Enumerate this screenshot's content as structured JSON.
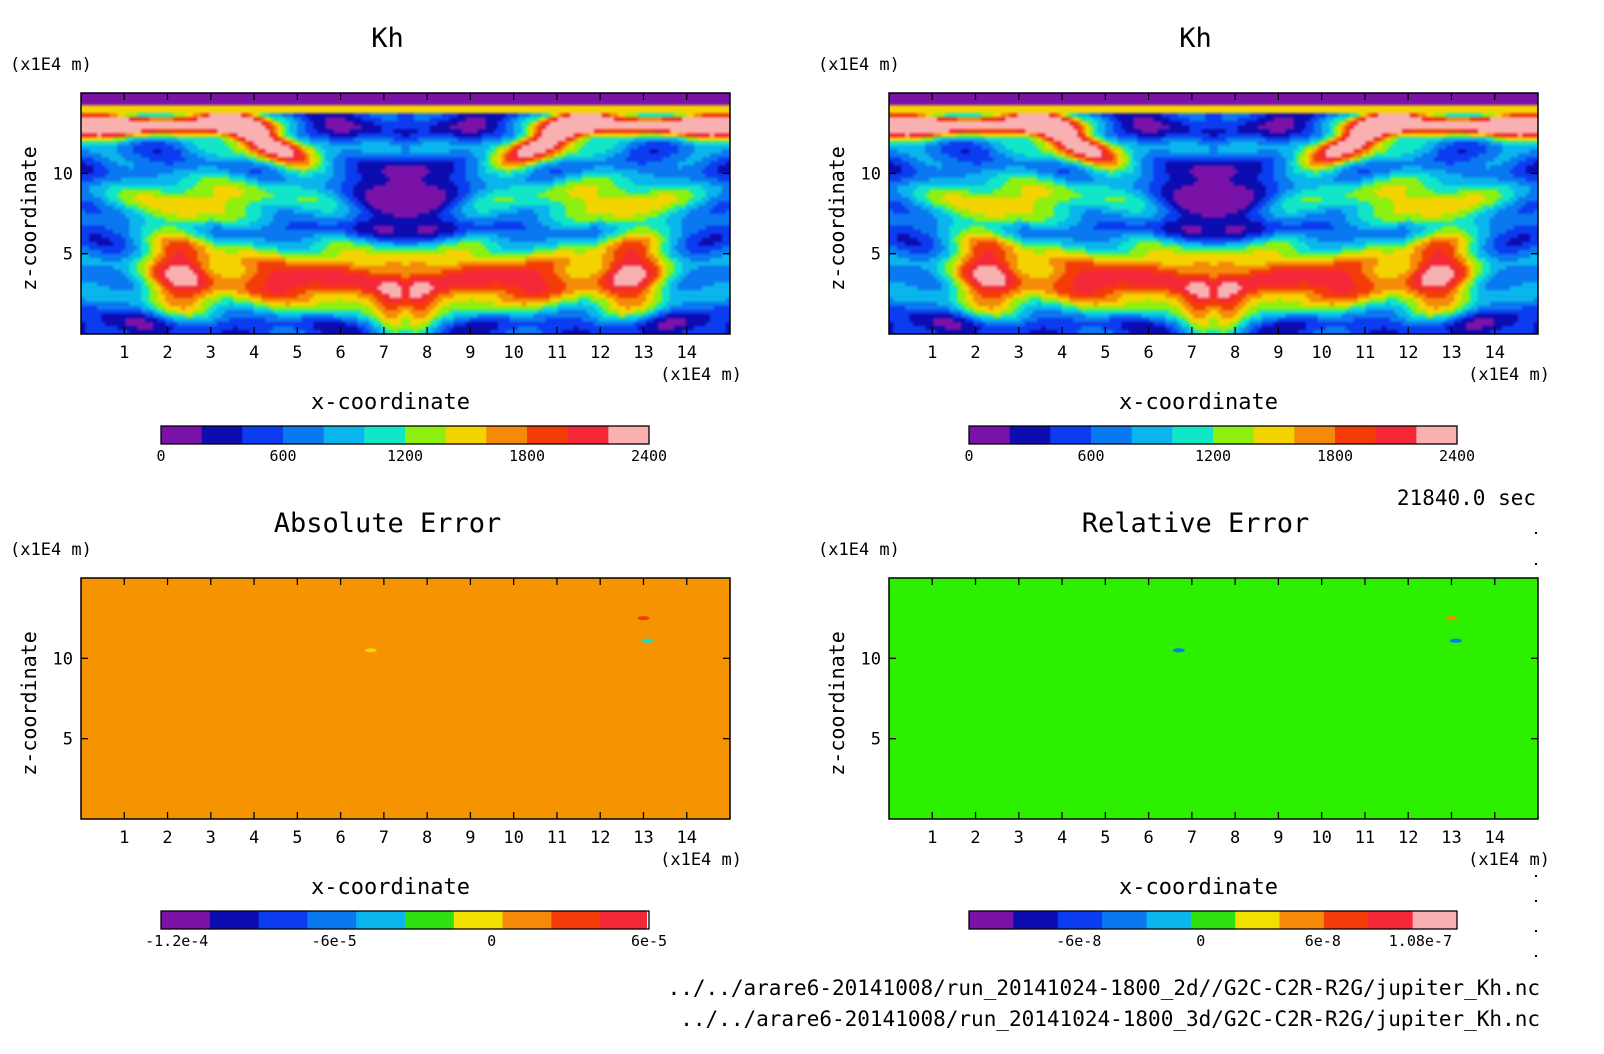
{
  "time_label": "21840.0 sec",
  "footer": {
    "path_2d": "../../arare6-20141008/run_20141024-1800_2d//G2C-C2R-R2G/jupiter_Kh.nc",
    "path_3d": "../../arare6-20141008/run_20141024-1800_3d/G2C-C2R-R2G/jupiter_Kh.nc"
  },
  "chart_data": [
    {
      "type": "heatmap",
      "title": "Kh",
      "xlabel": "x-coordinate",
      "ylabel": "z-coordinate",
      "x_unit": "(x1E4 m)",
      "y_unit": "(x1E4 m)",
      "x_ticks": [
        1,
        2,
        3,
        4,
        5,
        6,
        7,
        8,
        9,
        10,
        11,
        12,
        13,
        14
      ],
      "y_ticks": [
        5,
        10
      ],
      "xlim": [
        0,
        15
      ],
      "ylim": [
        0,
        15
      ],
      "field": "Kh",
      "colorbar": {
        "colors": [
          "#7a12a8",
          "#0c0cb0",
          "#0c3cf0",
          "#0a78f0",
          "#0ab4ec",
          "#12e6c8",
          "#8ef010",
          "#f4d400",
          "#f48a08",
          "#f43c08",
          "#f42838",
          "#f8b0b0"
        ],
        "ticks": [
          {
            "v": 0,
            "label": "0"
          },
          {
            "v": 600,
            "label": "600"
          },
          {
            "v": 1200,
            "label": "1200"
          },
          {
            "v": 1800,
            "label": "1800"
          },
          {
            "v": 2400,
            "label": "2400"
          }
        ],
        "range": [
          0,
          2400
        ],
        "open_end": false
      }
    },
    {
      "type": "heatmap",
      "title": "Kh",
      "xlabel": "x-coordinate",
      "ylabel": "z-coordinate",
      "x_unit": "(x1E4 m)",
      "y_unit": "(x1E4 m)",
      "x_ticks": [
        1,
        2,
        3,
        4,
        5,
        6,
        7,
        8,
        9,
        10,
        11,
        12,
        13,
        14
      ],
      "y_ticks": [
        5,
        10
      ],
      "xlim": [
        0,
        15
      ],
      "ylim": [
        0,
        15
      ],
      "field": "Kh",
      "colorbar": {
        "colors": [
          "#7a12a8",
          "#0c0cb0",
          "#0c3cf0",
          "#0a78f0",
          "#0ab4ec",
          "#12e6c8",
          "#8ef010",
          "#f4d400",
          "#f48a08",
          "#f43c08",
          "#f42838",
          "#f8b0b0"
        ],
        "ticks": [
          {
            "v": 0,
            "label": "0"
          },
          {
            "v": 600,
            "label": "600"
          },
          {
            "v": 1200,
            "label": "1200"
          },
          {
            "v": 1800,
            "label": "1800"
          },
          {
            "v": 2400,
            "label": "2400"
          }
        ],
        "range": [
          0,
          2400
        ],
        "open_end": false
      }
    },
    {
      "type": "heatmap",
      "title": "Absolute Error",
      "xlabel": "x-coordinate",
      "ylabel": "z-coordinate",
      "x_unit": "(x1E4 m)",
      "y_unit": "(x1E4 m)",
      "x_ticks": [
        1,
        2,
        3,
        4,
        5,
        6,
        7,
        8,
        9,
        10,
        11,
        12,
        13,
        14
      ],
      "y_ticks": [
        5,
        10
      ],
      "xlim": [
        0,
        15
      ],
      "ylim": [
        0,
        15
      ],
      "field": "uniform",
      "background_color": "#f59300",
      "spots": [
        {
          "x": 6.7,
          "y": 10.5,
          "color": "#f4d400"
        },
        {
          "x": 13.0,
          "y": 12.5,
          "color": "#f43c08"
        },
        {
          "x": 13.1,
          "y": 11.1,
          "color": "#12e6c8"
        }
      ],
      "colorbar": {
        "colors": [
          "#7a12a8",
          "#0c0cb0",
          "#0c3cf0",
          "#0a78f0",
          "#0ab4ec",
          "#30e010",
          "#f4e000",
          "#f48a08",
          "#f43c08",
          "#f42838"
        ],
        "ticks": [
          {
            "v": -0.00012,
            "label": "-1.2e-4"
          },
          {
            "v": -6e-05,
            "label": "-6e-5"
          },
          {
            "v": 0,
            "label": "0"
          },
          {
            "v": 6e-05,
            "label": "6e-5"
          }
        ],
        "range": [
          -0.000126,
          6e-05
        ],
        "open_end": true
      }
    },
    {
      "type": "heatmap",
      "title": "Relative Error",
      "xlabel": "x-coordinate",
      "ylabel": "z-coordinate",
      "x_unit": "(x1E4 m)",
      "y_unit": "(x1E4 m)",
      "x_ticks": [
        1,
        2,
        3,
        4,
        5,
        6,
        7,
        8,
        9,
        10,
        11,
        12,
        13,
        14
      ],
      "y_ticks": [
        5,
        10
      ],
      "xlim": [
        0,
        15
      ],
      "ylim": [
        0,
        15
      ],
      "field": "uniform",
      "background_color": "#2cf000",
      "spots": [
        {
          "x": 6.7,
          "y": 10.5,
          "color": "#0a78f0"
        },
        {
          "x": 13.0,
          "y": 12.5,
          "color": "#f48a08"
        },
        {
          "x": 13.1,
          "y": 11.1,
          "color": "#0a78f0"
        }
      ],
      "colorbar": {
        "colors": [
          "#7a12a8",
          "#0c0cb0",
          "#0c3cf0",
          "#0a78f0",
          "#0ab4ec",
          "#30e010",
          "#f4e000",
          "#f48a08",
          "#f43c08",
          "#f42838",
          "#f8b0b0"
        ],
        "ticks": [
          {
            "v": -6e-08,
            "label": "-6e-8"
          },
          {
            "v": 0,
            "label": "0"
          },
          {
            "v": 6e-08,
            "label": "6e-8"
          },
          {
            "v": 1.08e-07,
            "label": "1.08e-7"
          }
        ],
        "range": [
          -1.14e-07,
          1.26e-07
        ],
        "open_end": false
      }
    }
  ]
}
